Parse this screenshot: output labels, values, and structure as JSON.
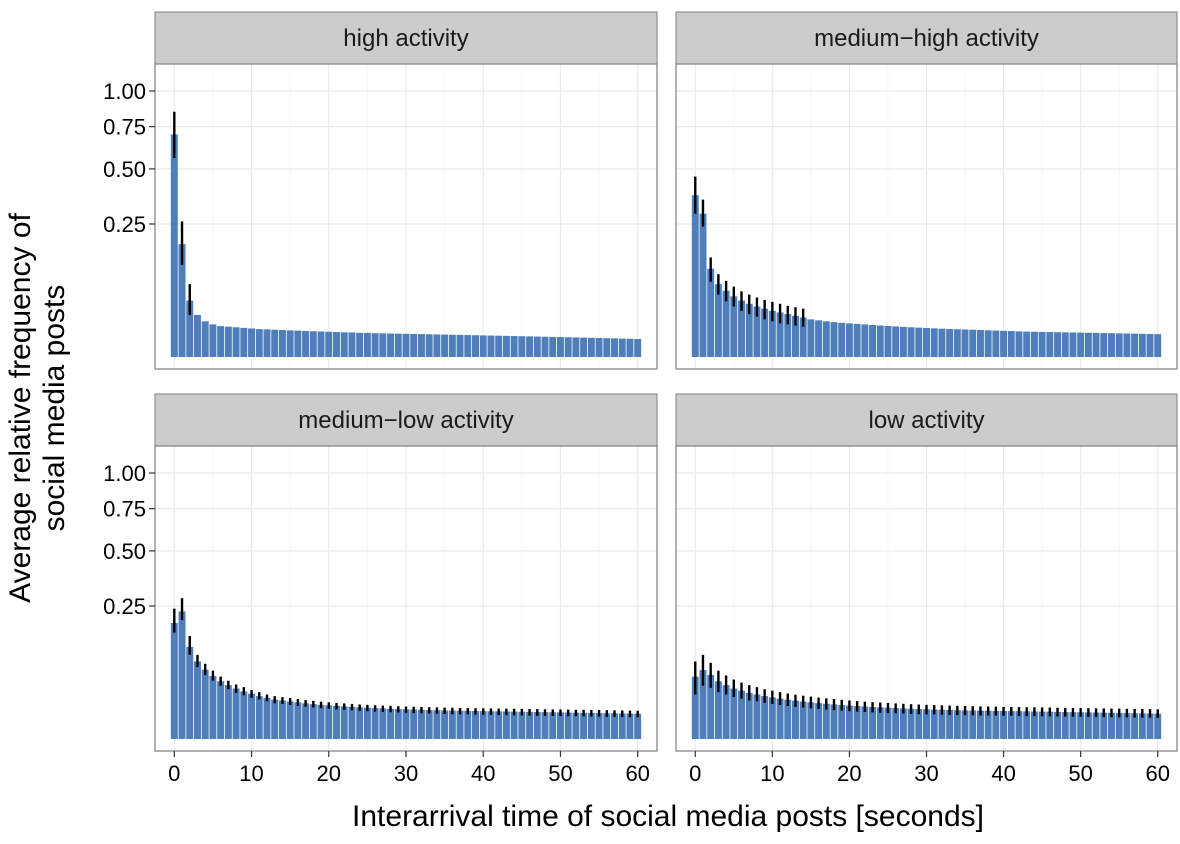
{
  "chart_data": {
    "type": "bar",
    "layout": "facet-grid-2x2",
    "scale_y": "sqrt",
    "grid": true,
    "legend": "none",
    "xlabel": "Interarrival time of social media posts [seconds]",
    "ylabel_lines": [
      "Average relative frequency of",
      "social media posts"
    ],
    "xlim": [
      -2.5,
      62.5
    ],
    "ylim": [
      0,
      1.1
    ],
    "x_ticks": [
      0,
      10,
      20,
      30,
      40,
      50,
      60
    ],
    "x_tick_labels": [
      "0",
      "10",
      "20",
      "30",
      "40",
      "50",
      "60"
    ],
    "y_ticks": [
      0.25,
      0.5,
      0.75,
      1.0
    ],
    "y_tick_labels": [
      "0.25",
      "0.50",
      "0.75",
      "1.00"
    ],
    "bar_color": "#4f7fba",
    "panel_bg": "#ffffff",
    "strip_bg": "#cccccc",
    "grid_color": "#ebebeb",
    "error_bar_color": "#000000",
    "facets": [
      {
        "title": "high activity",
        "values": [
          0.7,
          0.18,
          0.045,
          0.025,
          0.018,
          0.015,
          0.0135,
          0.013,
          0.0125,
          0.012,
          0.0115,
          0.011,
          0.0108,
          0.0105,
          0.0103,
          0.01,
          0.0098,
          0.0096,
          0.0094,
          0.0092,
          0.009,
          0.0088,
          0.0086,
          0.0085,
          0.0083,
          0.0082,
          0.008,
          0.0079,
          0.0078,
          0.0077,
          0.0076,
          0.0075,
          0.0074,
          0.0073,
          0.0072,
          0.0071,
          0.007,
          0.0069,
          0.0068,
          0.0067,
          0.0066,
          0.0065,
          0.0064,
          0.0063,
          0.0062,
          0.0061,
          0.006,
          0.0059,
          0.0058,
          0.0057,
          0.0056,
          0.0055,
          0.0054,
          0.0053,
          0.0052,
          0.0051,
          0.005,
          0.0049,
          0.0048,
          0.0047,
          0.0046
        ],
        "error_low": [
          0.56,
          0.12,
          0.025
        ],
        "error_high": [
          0.85,
          0.26,
          0.075
        ]
      },
      {
        "title": "medium−high activity",
        "values": [
          0.37,
          0.29,
          0.11,
          0.075,
          0.062,
          0.052,
          0.045,
          0.04,
          0.036,
          0.033,
          0.03,
          0.028,
          0.026,
          0.024,
          0.022,
          0.02,
          0.019,
          0.018,
          0.0172,
          0.0165,
          0.016,
          0.0155,
          0.015,
          0.0145,
          0.014,
          0.0136,
          0.0132,
          0.0128,
          0.0125,
          0.0122,
          0.0119,
          0.0116,
          0.0113,
          0.0111,
          0.0109,
          0.0107,
          0.0105,
          0.0103,
          0.0101,
          0.0099,
          0.0097,
          0.0095,
          0.0093,
          0.0091,
          0.009,
          0.0089,
          0.0088,
          0.0087,
          0.0086,
          0.0085,
          0.0084,
          0.0083,
          0.0082,
          0.0081,
          0.008,
          0.0079,
          0.0078,
          0.0077,
          0.0076,
          0.0075,
          0.0074
        ],
        "error_low": [
          0.29,
          0.24,
          0.08,
          0.055,
          0.044,
          0.036,
          0.03,
          0.026,
          0.023,
          0.02,
          0.018,
          0.016,
          0.015,
          0.014,
          0.013
        ],
        "error_high": [
          0.46,
          0.35,
          0.14,
          0.097,
          0.082,
          0.07,
          0.061,
          0.055,
          0.05,
          0.046,
          0.043,
          0.04,
          0.037,
          0.035,
          0.033
        ]
      },
      {
        "title": "medium−low activity",
        "values": [
          0.19,
          0.23,
          0.12,
          0.085,
          0.068,
          0.056,
          0.047,
          0.041,
          0.036,
          0.032,
          0.029,
          0.026,
          0.024,
          0.022,
          0.021,
          0.02,
          0.019,
          0.018,
          0.0172,
          0.0165,
          0.016,
          0.0155,
          0.015,
          0.0146,
          0.0142,
          0.0138,
          0.0135,
          0.0132,
          0.0129,
          0.0127,
          0.0125,
          0.0123,
          0.0121,
          0.0119,
          0.0117,
          0.0115,
          0.0114,
          0.0113,
          0.0112,
          0.0111,
          0.011,
          0.0109,
          0.0108,
          0.0107,
          0.0106,
          0.0105,
          0.0104,
          0.0103,
          0.0102,
          0.0101,
          0.01,
          0.0099,
          0.0098,
          0.0097,
          0.0096,
          0.0095,
          0.0094,
          0.0093,
          0.0092,
          0.0091,
          0.009
        ],
        "error_low": [
          0.16,
          0.2,
          0.1,
          0.073,
          0.058,
          0.048,
          0.04,
          0.035,
          0.03,
          0.027,
          0.024,
          0.022,
          0.02,
          0.018,
          0.0173,
          0.0164,
          0.0155,
          0.0147,
          0.014,
          0.0134,
          0.0129,
          0.0124,
          0.012,
          0.0116,
          0.0112,
          0.0109,
          0.0106,
          0.0103,
          0.0101,
          0.0099,
          0.0097,
          0.0095,
          0.0093,
          0.0091,
          0.009,
          0.0088,
          0.0087,
          0.0086,
          0.0085,
          0.0084,
          0.0083,
          0.0082,
          0.0081,
          0.008,
          0.0079,
          0.0078,
          0.0077,
          0.0076,
          0.0076,
          0.0075,
          0.0074,
          0.0073,
          0.0073,
          0.0072,
          0.0071,
          0.007,
          0.0069,
          0.0069,
          0.0068,
          0.0067,
          0.0066
        ],
        "error_high": [
          0.24,
          0.28,
          0.15,
          0.1,
          0.08,
          0.066,
          0.055,
          0.048,
          0.042,
          0.038,
          0.034,
          0.031,
          0.028,
          0.026,
          0.0248,
          0.0237,
          0.0226,
          0.0214,
          0.0206,
          0.0197,
          0.019,
          0.0184,
          0.0179,
          0.0174,
          0.0169,
          0.0165,
          0.0161,
          0.0158,
          0.0155,
          0.0152,
          0.0149,
          0.0147,
          0.0145,
          0.0143,
          0.0141,
          0.0139,
          0.0138,
          0.0136,
          0.0135,
          0.0134,
          0.0133,
          0.0132,
          0.0131,
          0.013,
          0.0129,
          0.0128,
          0.0127,
          0.0126,
          0.0125,
          0.0124,
          0.0123,
          0.0122,
          0.0121,
          0.012,
          0.0119,
          0.0118,
          0.0117,
          0.0116,
          0.0115,
          0.0114,
          0.0113
        ]
      },
      {
        "title": "low activity",
        "values": [
          0.055,
          0.067,
          0.058,
          0.047,
          0.041,
          0.036,
          0.033,
          0.03,
          0.028,
          0.026,
          0.0245,
          0.023,
          0.0218,
          0.0207,
          0.0198,
          0.019,
          0.0182,
          0.0175,
          0.0169,
          0.0163,
          0.0158,
          0.0153,
          0.0149,
          0.0145,
          0.0141,
          0.0138,
          0.0135,
          0.0132,
          0.0129,
          0.0127,
          0.0125,
          0.0123,
          0.0121,
          0.0119,
          0.0117,
          0.0116,
          0.0115,
          0.0114,
          0.0113,
          0.0112,
          0.0111,
          0.011,
          0.0109,
          0.0108,
          0.0107,
          0.0106,
          0.0105,
          0.0104,
          0.0103,
          0.0102,
          0.0101,
          0.01,
          0.0099,
          0.0098,
          0.0097,
          0.0096,
          0.0095,
          0.0094,
          0.0093,
          0.0092,
          0.0091
        ],
        "error_low": [
          0.028,
          0.04,
          0.037,
          0.031,
          0.028,
          0.025,
          0.023,
          0.021,
          0.02,
          0.0185,
          0.0174,
          0.0163,
          0.0154,
          0.0146,
          0.0139,
          0.0133,
          0.0127,
          0.0122,
          0.0117,
          0.0113,
          0.0109,
          0.0106,
          0.0103,
          0.01,
          0.0097,
          0.0095,
          0.0093,
          0.0091,
          0.0089,
          0.0087,
          0.0086,
          0.0085,
          0.0083,
          0.0082,
          0.0081,
          0.008,
          0.0079,
          0.0078,
          0.0078,
          0.0077,
          0.0076,
          0.0076,
          0.0075,
          0.0074,
          0.0074,
          0.0073,
          0.0072,
          0.0072,
          0.0071,
          0.007,
          0.007,
          0.0069,
          0.0068,
          0.0068,
          0.0067,
          0.0066,
          0.0066,
          0.0065,
          0.0064,
          0.0064,
          0.0063
        ],
        "error_high": [
          0.085,
          0.1,
          0.082,
          0.066,
          0.057,
          0.05,
          0.045,
          0.041,
          0.038,
          0.035,
          0.033,
          0.031,
          0.0293,
          0.0278,
          0.0265,
          0.0254,
          0.0243,
          0.0233,
          0.0225,
          0.0217,
          0.021,
          0.0203,
          0.0197,
          0.0192,
          0.0187,
          0.0183,
          0.0179,
          0.0175,
          0.0171,
          0.0168,
          0.0165,
          0.0162,
          0.016,
          0.0158,
          0.0156,
          0.0154,
          0.0152,
          0.015,
          0.0149,
          0.0148,
          0.0146,
          0.0145,
          0.0144,
          0.0143,
          0.0142,
          0.0141,
          0.014,
          0.0138,
          0.0137,
          0.0136,
          0.0135,
          0.0134,
          0.0133,
          0.0132,
          0.0131,
          0.013,
          0.0129,
          0.0128,
          0.0127,
          0.0126,
          0.0125
        ]
      }
    ]
  }
}
